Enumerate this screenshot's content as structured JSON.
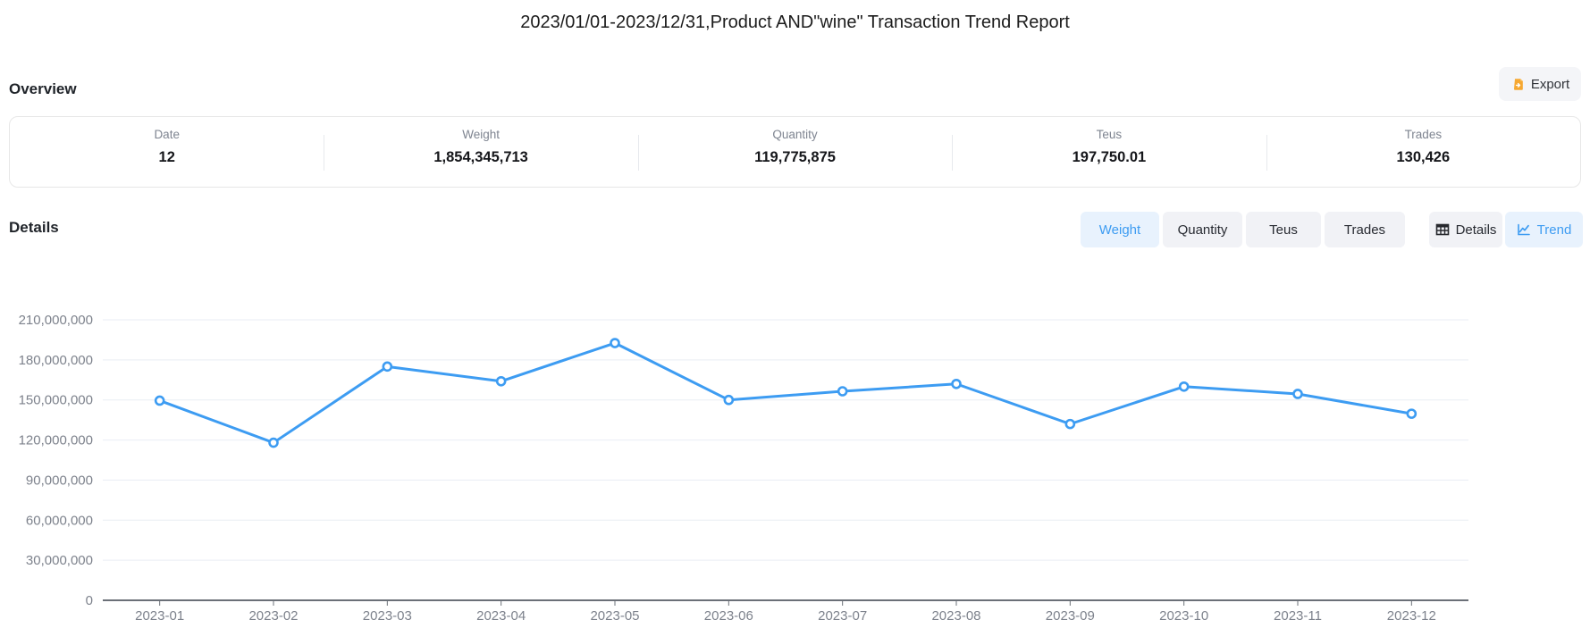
{
  "title": "2023/01/01-2023/12/31,Product AND\"wine\" Transaction Trend Report",
  "overview": {
    "heading": "Overview",
    "export_label": "Export",
    "stats": [
      {
        "label": "Date",
        "value": "12"
      },
      {
        "label": "Weight",
        "value": "1,854,345,713"
      },
      {
        "label": "Quantity",
        "value": "119,775,875"
      },
      {
        "label": "Teus",
        "value": "197,750.01"
      },
      {
        "label": "Trades",
        "value": "130,426"
      }
    ]
  },
  "details": {
    "heading": "Details",
    "metric_tabs": [
      {
        "label": "Weight",
        "active": true
      },
      {
        "label": "Quantity",
        "active": false
      },
      {
        "label": "Teus",
        "active": false
      },
      {
        "label": "Trades",
        "active": false
      }
    ],
    "view_tabs": [
      {
        "label": "Details",
        "icon": "table-icon",
        "active": false
      },
      {
        "label": "Trend",
        "icon": "trend-icon",
        "active": true
      }
    ]
  },
  "colors": {
    "accent_blue": "#3d9cf2",
    "active_tab_bg": "#e8f2fd",
    "inactive_tab_bg": "#f1f2f6",
    "export_icon_orange": "#f6a831",
    "gridline": "#e9edf4",
    "axis_line": "#6b7078",
    "axis_label": "#7d828c"
  },
  "chart_data": {
    "type": "line",
    "title": "",
    "xlabel": "",
    "ylabel": "",
    "legend": false,
    "grid": true,
    "categories": [
      "2023-01",
      "2023-02",
      "2023-03",
      "2023-04",
      "2023-05",
      "2023-06",
      "2023-07",
      "2023-08",
      "2023-09",
      "2023-10",
      "2023-11",
      "2023-12"
    ],
    "series": [
      {
        "name": "Weight",
        "values": [
          149500000,
          118000000,
          175000000,
          164000000,
          192600000,
          150000000,
          156500000,
          162000000,
          132000000,
          160000000,
          154500000,
          139700000
        ]
      }
    ],
    "ylim": [
      0,
      210000000
    ],
    "ytick_interval": 30000000,
    "line_color": "#3d9cf2",
    "marker": "hollow-circle"
  }
}
